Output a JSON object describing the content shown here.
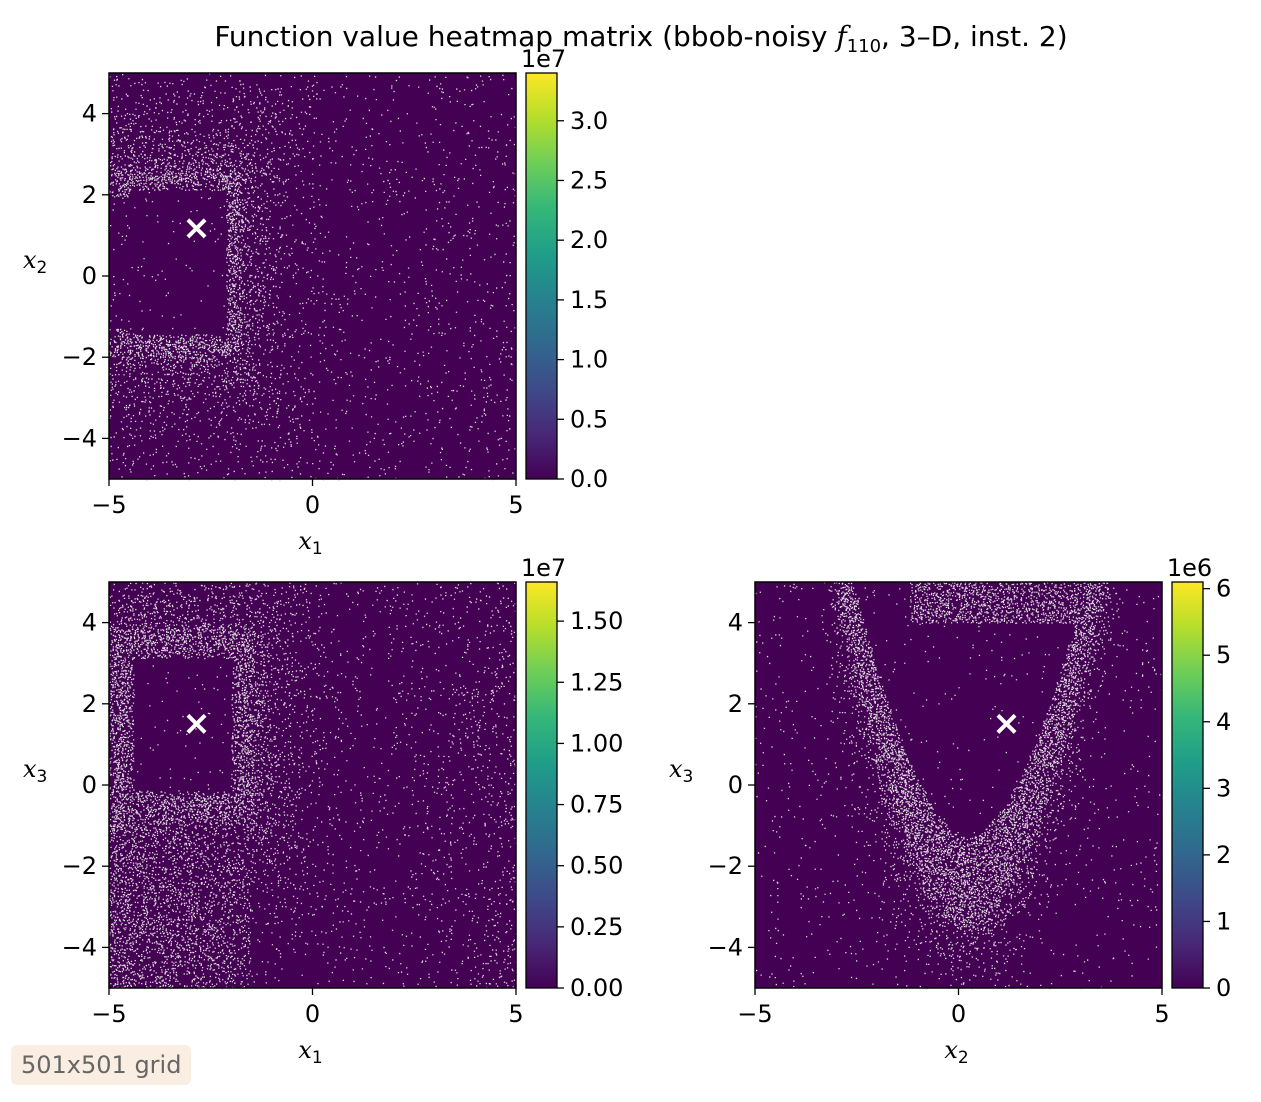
{
  "figure_title": "Function value heatmap matrix (bbob-noisy f110, 3–D, inst. 2)",
  "title": {
    "prefix": "Function value heatmap matrix (bbob-noisy ",
    "symbol": "f",
    "subscript": "110",
    "suffix": ", 3–D, inst. 2)"
  },
  "badge": "501x501 grid",
  "colors": {
    "background": "#440154",
    "noise_speckle": "#dcdcdc",
    "marker": "#ffffff",
    "colormap": [
      "#440154",
      "#482878",
      "#3e4a89",
      "#31688e",
      "#26828e",
      "#1f9e89",
      "#35b779",
      "#6ece58",
      "#b5de2b",
      "#fde725"
    ]
  },
  "chart_data": [
    {
      "type": "heatmap",
      "name": "x1-x2",
      "xlabel": "x",
      "xlabel_sub": "1",
      "ylabel": "x",
      "ylabel_sub": "2",
      "xlim": [
        -5,
        5
      ],
      "ylim": [
        -5,
        5
      ],
      "xticks": [
        -5,
        0,
        5
      ],
      "xtick_labels": [
        "−5",
        "0",
        "5"
      ],
      "yticks": [
        -4,
        -2,
        0,
        2,
        4
      ],
      "ytick_labels": [
        "−4",
        "−2",
        "0",
        "2",
        "4"
      ],
      "marker": {
        "x": -2.85,
        "y": 1.18,
        "label": "×"
      },
      "grid": "501x501",
      "colorbar": {
        "range": [
          0,
          3.4
        ],
        "ticks": [
          0,
          0.5,
          1.0,
          1.5,
          2.0,
          2.5,
          3.0
        ],
        "tick_labels": [
          "0.0",
          "0.5",
          "1.0",
          "1.5",
          "2.0",
          "2.5",
          "3.0"
        ],
        "offset": "1e7"
      }
    },
    {
      "type": "heatmap",
      "name": "x1-x3",
      "xlabel": "x",
      "xlabel_sub": "1",
      "ylabel": "x",
      "ylabel_sub": "3",
      "xlim": [
        -5,
        5
      ],
      "ylim": [
        -5,
        5
      ],
      "xticks": [
        -5,
        0,
        5
      ],
      "xtick_labels": [
        "−5",
        "0",
        "5"
      ],
      "yticks": [
        -4,
        -2,
        0,
        2,
        4
      ],
      "ytick_labels": [
        "−4",
        "−2",
        "0",
        "2",
        "4"
      ],
      "marker": {
        "x": -2.85,
        "y": 1.52,
        "label": "×"
      },
      "grid": "501x501",
      "colorbar": {
        "range": [
          0,
          1.66
        ],
        "ticks": [
          0,
          0.25,
          0.5,
          0.75,
          1.0,
          1.25,
          1.5
        ],
        "tick_labels": [
          "0.00",
          "0.25",
          "0.50",
          "0.75",
          "1.00",
          "1.25",
          "1.50"
        ],
        "offset": "1e7"
      }
    },
    {
      "type": "heatmap",
      "name": "x2-x3",
      "xlabel": "x",
      "xlabel_sub": "2",
      "ylabel": "x",
      "ylabel_sub": "3",
      "xlim": [
        -5,
        5
      ],
      "ylim": [
        -5,
        5
      ],
      "xticks": [
        -5,
        0,
        5
      ],
      "xtick_labels": [
        "−5",
        "0",
        "5"
      ],
      "yticks": [
        -4,
        -2,
        0,
        2,
        4
      ],
      "ytick_labels": [
        "−4",
        "−2",
        "0",
        "2",
        "4"
      ],
      "marker": {
        "x": 1.18,
        "y": 1.52,
        "label": "×"
      },
      "grid": "501x501",
      "colorbar": {
        "range": [
          0,
          6.1
        ],
        "ticks": [
          0,
          1,
          2,
          3,
          4,
          5,
          6
        ],
        "tick_labels": [
          "0",
          "1",
          "2",
          "3",
          "4",
          "5",
          "6"
        ],
        "offset": "1e6"
      }
    }
  ]
}
